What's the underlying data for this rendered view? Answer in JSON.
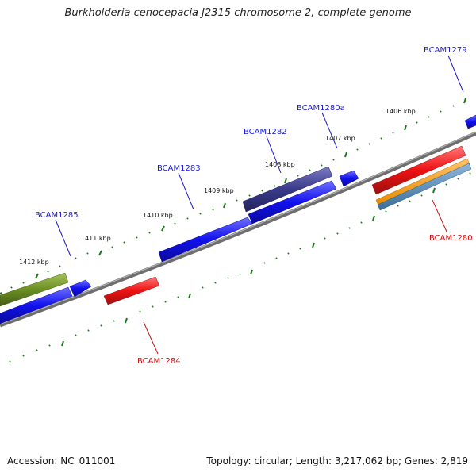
{
  "title": "Burkholderia cenocepacia J2315 chromosome 2, complete genome",
  "footer": {
    "accession": "Accession: NC_011001",
    "topology": "Topology: circular; Length: 3,217,062 bp; Genes: 2,819"
  },
  "colors": {
    "blue": "#1111ee",
    "red": "#ee1111",
    "navy": "#3a3a8a",
    "olive": "#6b8e23",
    "orange": "#ff9900",
    "steel": "#4682b4",
    "backbone": "#808080",
    "tick": "#1a7a1a"
  },
  "kbp_labels": [
    "1406 kbp",
    "1407 kbp",
    "1408 kbp",
    "1409 kbp",
    "1410 kbp",
    "1411 kbp",
    "1412 kbp"
  ],
  "gene_labels": [
    {
      "name": "BCAM1279",
      "strand": "plus"
    },
    {
      "name": "BCAM1280a",
      "strand": "plus"
    },
    {
      "name": "BCAM1282",
      "strand": "plus"
    },
    {
      "name": "BCAM1283",
      "strand": "plus"
    },
    {
      "name": "BCAM1285",
      "strand": "plus"
    },
    {
      "name": "BCAM1280",
      "strand": "minus"
    },
    {
      "name": "BCAM1284",
      "strand": "minus"
    }
  ]
}
